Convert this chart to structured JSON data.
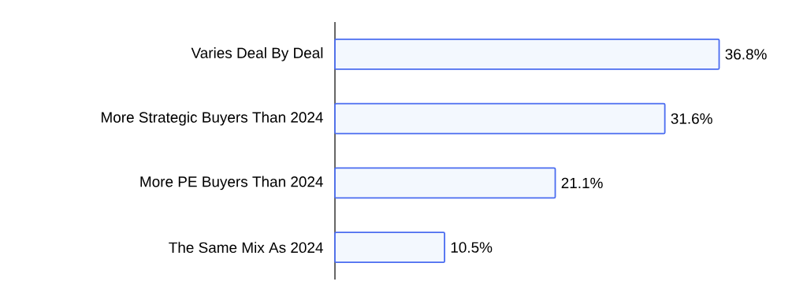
{
  "chart_data": {
    "type": "bar",
    "orientation": "horizontal",
    "categories": [
      "Varies Deal By Deal",
      "More Strategic Buyers Than 2024",
      "More PE Buyers Than 2024",
      "The Same Mix As 2024"
    ],
    "values": [
      36.8,
      31.6,
      21.1,
      10.5
    ],
    "value_labels": [
      "36.8%",
      "31.6%",
      "21.1%",
      "10.5%"
    ],
    "color": "#f3f8fe",
    "tick_labels": "y"
  }
}
